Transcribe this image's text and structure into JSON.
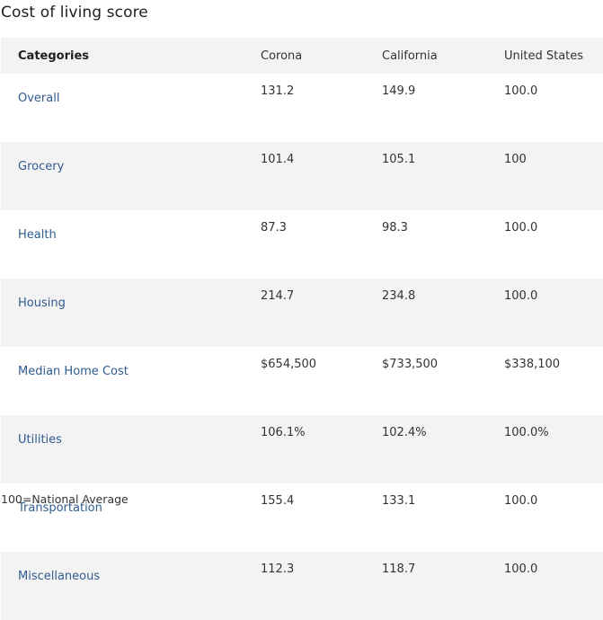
{
  "title": "Cost of living score",
  "table": {
    "headers": [
      "Categories",
      "Corona",
      "California",
      "United States"
    ],
    "rows": [
      {
        "category": "Overall",
        "values": [
          "131.2",
          "149.9",
          "100.0"
        ]
      },
      {
        "category": "Grocery",
        "values": [
          "101.4",
          "105.1",
          "100"
        ]
      },
      {
        "category": "Health",
        "values": [
          "87.3",
          "98.3",
          "100.0"
        ]
      },
      {
        "category": "Housing",
        "values": [
          "214.7",
          "234.8",
          "100.0"
        ]
      },
      {
        "category": "Median Home Cost",
        "values": [
          "$654,500",
          "$733,500",
          "$338,100"
        ]
      },
      {
        "category": "Utilities",
        "values": [
          "106.1%",
          "102.4%",
          "100.0%"
        ]
      },
      {
        "category": "Transportation",
        "values": [
          "155.4",
          "133.1",
          "100.0"
        ]
      },
      {
        "category": "Miscellaneous",
        "values": [
          "112.3",
          "118.7",
          "100.0"
        ]
      }
    ]
  },
  "footnote": "100=National Average"
}
